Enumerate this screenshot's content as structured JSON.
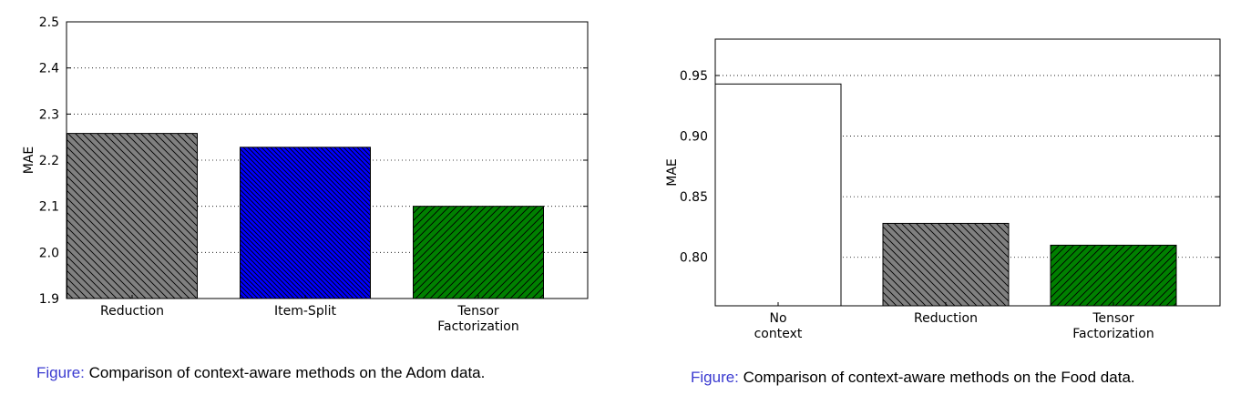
{
  "chart_data": [
    {
      "type": "bar",
      "categories": [
        "Reduction",
        "Item-Split",
        "Tensor\nFactorization"
      ],
      "values": [
        2.258,
        2.228,
        2.1
      ],
      "bar_colors": [
        "#808080",
        "#0000ff",
        "#008000"
      ],
      "bar_hatch": [
        "backslash",
        "backslash-dense",
        "slash"
      ],
      "ylabel": "MAE",
      "xlabel": "",
      "ylim": [
        1.9,
        2.5
      ],
      "yticks": [
        "1.9",
        "2.0",
        "2.1",
        "2.2",
        "2.3",
        "2.4",
        "2.5"
      ],
      "grid": true
    },
    {
      "type": "bar",
      "categories": [
        "No\ncontext",
        "Reduction",
        "Tensor\nFactorization"
      ],
      "values": [
        0.943,
        0.828,
        0.81
      ],
      "bar_colors": [
        "#ffffff",
        "#808080",
        "#008000"
      ],
      "bar_hatch": [
        "none",
        "backslash",
        "slash"
      ],
      "ylabel": "MAE",
      "xlabel": "",
      "ylim": [
        0.76,
        0.98
      ],
      "yticks": [
        "0.80",
        "0.85",
        "0.90",
        "0.95"
      ],
      "grid": true
    }
  ],
  "captions": [
    {
      "prefix": "Figure:",
      "text": "Comparison of context-aware methods on the Adom data."
    },
    {
      "prefix": "Figure:",
      "text": "Comparison of context-aware methods on the Food data."
    }
  ]
}
